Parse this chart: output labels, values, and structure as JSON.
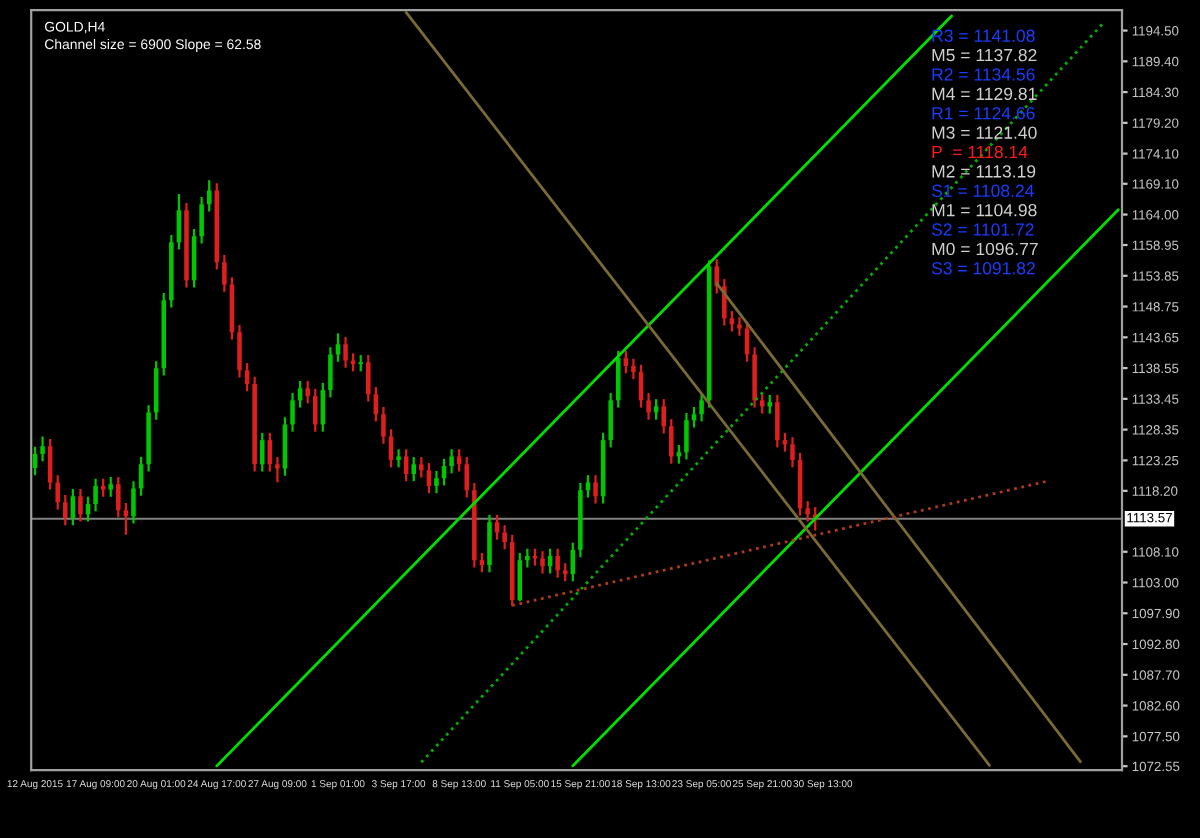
{
  "chart_data": {
    "type": "candlestick",
    "title": "GOLD,H4",
    "subtitle": "Channel size = 6900 Slope = 62.58",
    "categories": [
      "12 Aug 2015",
      null,
      null,
      null,
      null,
      null,
      null,
      null,
      "17 Aug 09:00",
      null,
      null,
      null,
      null,
      null,
      null,
      null,
      "20 Aug 01:00",
      null,
      null,
      null,
      null,
      null,
      null,
      null,
      "24 Aug 17:00",
      null,
      null,
      null,
      null,
      null,
      null,
      null,
      "27 Aug 09:00",
      null,
      null,
      null,
      null,
      null,
      null,
      null,
      "1 Sep 01:00",
      null,
      null,
      null,
      null,
      null,
      null,
      null,
      "3 Sep 17:00",
      null,
      null,
      null,
      null,
      null,
      null,
      null,
      "8 Sep 13:00",
      null,
      null,
      null,
      null,
      null,
      null,
      null,
      "11 Sep 05:00",
      null,
      null,
      null,
      null,
      null,
      null,
      null,
      "15 Sep 21:00",
      null,
      null,
      null,
      null,
      null,
      null,
      null,
      "18 Sep 13:00",
      null,
      null,
      null,
      null,
      null,
      null,
      null,
      "23 Sep 05:00",
      null,
      null,
      null,
      null,
      null,
      null,
      null,
      "25 Sep 21:00",
      null,
      null,
      null,
      null,
      null,
      null,
      null,
      "30 Sep 13:00",
      null,
      null,
      null,
      null,
      null,
      null,
      null,
      null,
      null,
      null,
      null,
      null,
      null,
      null,
      null,
      null,
      null,
      null,
      null,
      null,
      null,
      null,
      null,
      null,
      null,
      null,
      null,
      null,
      null,
      null,
      null,
      null,
      null,
      null,
      null,
      null,
      null,
      null,
      null
    ],
    "ohlc": [
      [
        1122.0,
        1125.5,
        1120.8,
        1124.3
      ],
      [
        1124.3,
        1127.2,
        1123.1,
        1125.6
      ],
      [
        1125.6,
        1126.8,
        1118.4,
        1119.6
      ],
      [
        1119.6,
        1120.8,
        1115.1,
        1116.3
      ],
      [
        1116.3,
        1117.5,
        1112.5,
        1113.7
      ],
      [
        1113.7,
        1118.5,
        1112.5,
        1117.3
      ],
      [
        1117.3,
        1118.5,
        1113.1,
        1114.3
      ],
      [
        1114.3,
        1117.2,
        1113.1,
        1116.0
      ],
      [
        1116.0,
        1120.2,
        1114.8,
        1119.0
      ],
      [
        1119.0,
        1120.2,
        1117.2,
        1118.4
      ],
      [
        1118.4,
        1120.5,
        1117.2,
        1119.3
      ],
      [
        1119.3,
        1120.5,
        1113.8,
        1115.0
      ],
      [
        1115.0,
        1116.2,
        1110.9,
        1114.0
      ],
      [
        1114.0,
        1119.8,
        1112.8,
        1118.6
      ],
      [
        1118.6,
        1123.8,
        1117.4,
        1122.6
      ],
      [
        1122.6,
        1132.4,
        1121.4,
        1131.2
      ],
      [
        1131.2,
        1139.7,
        1130.0,
        1138.5
      ],
      [
        1138.5,
        1151.0,
        1137.3,
        1149.8
      ],
      [
        1149.8,
        1160.6,
        1148.6,
        1159.4
      ],
      [
        1159.4,
        1167.4,
        1158.2,
        1164.7
      ],
      [
        1164.7,
        1165.9,
        1151.9,
        1153.1
      ],
      [
        1153.1,
        1161.6,
        1151.9,
        1160.4
      ],
      [
        1160.4,
        1166.9,
        1159.2,
        1165.7
      ],
      [
        1165.7,
        1169.7,
        1164.5,
        1168.0
      ],
      [
        1168.0,
        1169.2,
        1154.9,
        1156.1
      ],
      [
        1156.1,
        1157.3,
        1151.2,
        1152.4
      ],
      [
        1152.4,
        1153.6,
        1143.3,
        1144.5
      ],
      [
        1144.5,
        1145.7,
        1137.0,
        1138.2
      ],
      [
        1138.2,
        1139.4,
        1134.7,
        1135.9
      ],
      [
        1135.9,
        1137.1,
        1121.4,
        1122.6
      ],
      [
        1122.6,
        1127.8,
        1121.4,
        1126.6
      ],
      [
        1126.6,
        1127.8,
        1121.4,
        1122.6
      ],
      [
        1122.6,
        1123.8,
        1119.6,
        1121.9
      ],
      [
        1121.9,
        1130.4,
        1120.7,
        1129.2
      ],
      [
        1129.2,
        1134.4,
        1128.0,
        1133.2
      ],
      [
        1133.2,
        1136.4,
        1132.0,
        1135.2
      ],
      [
        1135.2,
        1136.4,
        1132.7,
        1133.9
      ],
      [
        1133.9,
        1135.1,
        1128.0,
        1129.2
      ],
      [
        1129.2,
        1136.1,
        1128.0,
        1134.9
      ],
      [
        1134.9,
        1142.0,
        1133.7,
        1140.8
      ],
      [
        1140.8,
        1144.3,
        1139.6,
        1142.5
      ],
      [
        1142.5,
        1143.7,
        1138.6,
        1139.8
      ],
      [
        1139.8,
        1141.0,
        1138.0,
        1139.2
      ],
      [
        1139.2,
        1140.7,
        1138.0,
        1139.5
      ],
      [
        1139.5,
        1140.7,
        1133.0,
        1134.2
      ],
      [
        1134.2,
        1135.4,
        1129.7,
        1130.9
      ],
      [
        1130.9,
        1132.1,
        1126.0,
        1127.2
      ],
      [
        1127.2,
        1128.4,
        1122.1,
        1123.3
      ],
      [
        1123.3,
        1125.1,
        1122.1,
        1123.9
      ],
      [
        1123.9,
        1125.1,
        1119.8,
        1121.0
      ],
      [
        1121.0,
        1123.8,
        1119.8,
        1122.6
      ],
      [
        1122.6,
        1123.8,
        1120.4,
        1121.6
      ],
      [
        1121.6,
        1122.8,
        1117.8,
        1119.0
      ],
      [
        1119.0,
        1121.5,
        1117.8,
        1120.3
      ],
      [
        1120.3,
        1123.5,
        1119.1,
        1122.3
      ],
      [
        1122.3,
        1125.1,
        1121.1,
        1123.9
      ],
      [
        1123.9,
        1125.1,
        1121.4,
        1122.6
      ],
      [
        1122.6,
        1123.8,
        1117.1,
        1118.3
      ],
      [
        1118.3,
        1119.5,
        1105.5,
        1106.7
      ],
      [
        1106.7,
        1107.9,
        1104.7,
        1105.9
      ],
      [
        1105.9,
        1114.2,
        1104.7,
        1113.0
      ],
      [
        1113.0,
        1114.2,
        1110.1,
        1111.3
      ],
      [
        1111.3,
        1112.5,
        1108.5,
        1109.7
      ],
      [
        1109.7,
        1110.9,
        1099.1,
        1100.1
      ],
      [
        1100.1,
        1107.9,
        1099.9,
        1106.7
      ],
      [
        1106.7,
        1108.6,
        1105.5,
        1107.4
      ],
      [
        1107.4,
        1108.6,
        1105.8,
        1107.0
      ],
      [
        1107.0,
        1108.2,
        1104.5,
        1105.7
      ],
      [
        1105.7,
        1108.6,
        1104.5,
        1107.4
      ],
      [
        1107.4,
        1108.6,
        1103.8,
        1105.0
      ],
      [
        1105.0,
        1106.2,
        1103.2,
        1104.4
      ],
      [
        1104.4,
        1109.6,
        1103.2,
        1108.4
      ],
      [
        1108.4,
        1119.5,
        1107.2,
        1118.3
      ],
      [
        1118.3,
        1120.8,
        1117.1,
        1119.6
      ],
      [
        1119.6,
        1120.8,
        1116.1,
        1117.3
      ],
      [
        1117.3,
        1127.8,
        1116.1,
        1126.6
      ],
      [
        1126.6,
        1134.4,
        1125.4,
        1133.2
      ],
      [
        1133.2,
        1141.4,
        1132.0,
        1140.2
      ],
      [
        1140.2,
        1141.4,
        1137.7,
        1138.9
      ],
      [
        1138.9,
        1140.1,
        1136.7,
        1137.9
      ],
      [
        1137.9,
        1139.1,
        1132.0,
        1133.2
      ],
      [
        1133.2,
        1134.4,
        1130.0,
        1131.2
      ],
      [
        1131.2,
        1133.4,
        1130.0,
        1132.2
      ],
      [
        1132.2,
        1133.4,
        1127.7,
        1128.9
      ],
      [
        1128.9,
        1130.1,
        1122.7,
        1123.9
      ],
      [
        1123.9,
        1125.8,
        1122.7,
        1124.6
      ],
      [
        1124.6,
        1131.1,
        1123.4,
        1129.9
      ],
      [
        1129.9,
        1132.1,
        1128.7,
        1130.9
      ],
      [
        1130.9,
        1134.4,
        1129.7,
        1133.2
      ],
      [
        1133.2,
        1156.4,
        1132.0,
        1155.4
      ],
      [
        1155.4,
        1156.6,
        1150.9,
        1152.1
      ],
      [
        1152.1,
        1153.3,
        1145.6,
        1146.8
      ],
      [
        1146.8,
        1148.0,
        1144.6,
        1145.8
      ],
      [
        1145.8,
        1147.0,
        1143.9,
        1145.1
      ],
      [
        1145.1,
        1146.3,
        1139.6,
        1140.8
      ],
      [
        1140.8,
        1142.0,
        1132.0,
        1133.2
      ],
      [
        1133.2,
        1134.4,
        1131.0,
        1132.2
      ],
      [
        1132.2,
        1134.1,
        1131.0,
        1132.9
      ],
      [
        1132.9,
        1134.1,
        1125.4,
        1126.6
      ],
      [
        1126.6,
        1127.8,
        1124.7,
        1125.9
      ],
      [
        1125.9,
        1127.1,
        1122.1,
        1123.3
      ],
      [
        1123.3,
        1124.5,
        1114.1,
        1115.3
      ],
      [
        1115.3,
        1116.5,
        1113.1,
        1114.3
      ],
      [
        1114.3,
        1115.5,
        1111.6,
        1113.3
      ],
      null,
      null,
      null,
      null,
      null,
      null,
      null,
      null,
      null,
      null,
      null,
      null,
      null,
      null,
      null,
      null,
      null,
      null,
      null,
      null,
      null,
      null,
      null,
      null,
      null,
      null,
      null,
      null,
      null,
      null,
      null,
      null,
      null,
      null,
      null,
      null,
      null,
      null,
      null,
      null
    ],
    "colors": [
      "#00c800",
      "#00c800",
      "#e01e1e",
      "#e01e1e",
      "#e01e1e",
      "#00c800",
      "#e01e1e",
      "#00c800",
      "#00c800",
      "#e01e1e",
      "#00c800",
      "#e01e1e",
      "#e01e1e",
      "#00c800",
      "#00c800",
      "#00c800",
      "#00c800",
      "#00c800",
      "#00c800",
      "#00c800",
      "#e01e1e",
      "#00c800",
      "#00c800",
      "#00c800",
      "#e01e1e",
      "#e01e1e",
      "#e01e1e",
      "#e01e1e",
      "#e01e1e",
      "#e01e1e",
      "#00c800",
      "#e01e1e",
      "#e01e1e",
      "#00c800",
      "#00c800",
      "#00c800",
      "#e01e1e",
      "#e01e1e",
      "#00c800",
      "#00c800",
      "#00c800",
      "#e01e1e",
      "#e01e1e",
      "#00c800",
      "#e01e1e",
      "#e01e1e",
      "#e01e1e",
      "#e01e1e",
      "#00c800",
      "#e01e1e",
      "#00c800",
      "#e01e1e",
      "#e01e1e",
      "#00c800",
      "#00c800",
      "#00c800",
      "#e01e1e",
      "#e01e1e",
      "#e01e1e",
      "#e01e1e",
      "#00c800",
      "#e01e1e",
      "#e01e1e",
      "#e01e1e",
      "#00c800",
      "#00c800",
      "#e01e1e",
      "#e01e1e",
      "#00c800",
      "#e01e1e",
      "#e01e1e",
      "#00c800",
      "#00c800",
      "#00c800",
      "#e01e1e",
      "#00c800",
      "#00c800",
      "#00c800",
      "#e01e1e",
      "#e01e1e",
      "#e01e1e",
      "#e01e1e",
      "#00c800",
      "#e01e1e",
      "#e01e1e",
      "#00c800",
      "#00c800",
      "#00c800",
      "#00c800",
      "#00c800",
      "#e01e1e",
      "#e01e1e",
      "#e01e1e",
      "#e01e1e",
      "#e01e1e",
      "#e01e1e",
      "#e01e1e",
      "#00c800",
      "#e01e1e",
      "#e01e1e",
      "#e01e1e",
      "#e01e1e",
      "#e01e1e",
      "#e01e1e",
      null,
      null,
      null,
      null,
      null,
      null,
      null,
      null,
      null,
      null,
      null,
      null,
      null,
      null,
      null,
      null,
      null,
      null,
      null,
      null,
      null,
      null,
      null,
      null,
      null,
      null,
      null,
      null,
      null,
      null,
      null,
      null,
      null,
      null,
      null,
      null,
      null,
      null,
      null,
      null
    ],
    "series": [
      {
        "type": "line",
        "color": "#00e000",
        "line_style": "solid",
        "values": [
          null,
          null,
          null,
          null,
          null,
          null,
          null,
          null,
          null,
          null,
          null,
          null,
          null,
          null,
          null,
          null,
          null,
          null,
          null,
          null,
          null,
          null,
          null,
          null,
          1072.6,
          null,
          null,
          null,
          null,
          null,
          null,
          null,
          null,
          null,
          null,
          null,
          null,
          null,
          null,
          null,
          null,
          null,
          null,
          null,
          null,
          null,
          null,
          null,
          null,
          null,
          null,
          null,
          null,
          null,
          null,
          null,
          null,
          null,
          null,
          null,
          null,
          null,
          null,
          null,
          null,
          null,
          null,
          null,
          null,
          null,
          null,
          null,
          null,
          null,
          null,
          null,
          null,
          null,
          null,
          null,
          null,
          null,
          null,
          null,
          null,
          null,
          null,
          null,
          null,
          null,
          null,
          null,
          null,
          null,
          null,
          null,
          null,
          null,
          null,
          null,
          null,
          null,
          null,
          null,
          null,
          null,
          null,
          null,
          null,
          null,
          null,
          null,
          null,
          null,
          null,
          null,
          null,
          null,
          null,
          null,
          null,
          1196.9,
          null,
          null,
          null,
          null,
          null,
          null,
          null,
          null,
          null,
          null,
          null,
          null,
          null,
          null,
          null,
          null,
          null,
          null,
          null,
          null,
          null,
          null
        ]
      },
      {
        "type": "line",
        "color": "#00e000",
        "line_style": "solid",
        "values": [
          null,
          null,
          null,
          null,
          null,
          null,
          null,
          null,
          null,
          null,
          null,
          null,
          null,
          null,
          null,
          null,
          null,
          null,
          null,
          null,
          null,
          null,
          null,
          null,
          null,
          null,
          null,
          null,
          null,
          null,
          null,
          null,
          null,
          null,
          null,
          null,
          null,
          null,
          null,
          null,
          null,
          null,
          null,
          null,
          null,
          null,
          null,
          null,
          null,
          null,
          null,
          null,
          null,
          null,
          null,
          null,
          null,
          null,
          null,
          null,
          null,
          null,
          null,
          null,
          null,
          null,
          null,
          null,
          null,
          null,
          null,
          1072.6,
          null,
          null,
          null,
          null,
          null,
          null,
          null,
          null,
          null,
          null,
          null,
          null,
          null,
          null,
          null,
          null,
          null,
          null,
          null,
          null,
          null,
          null,
          null,
          null,
          null,
          null,
          null,
          null,
          null,
          null,
          null,
          null,
          null,
          null,
          null,
          null,
          null,
          null,
          null,
          null,
          null,
          null,
          null,
          null,
          null,
          null,
          null,
          null,
          null,
          null,
          null,
          null,
          null,
          null,
          null,
          null,
          null,
          null,
          null,
          null,
          null,
          null,
          null,
          null,
          null,
          null,
          null,
          null,
          null,
          null,
          null,
          1164.8
        ]
      },
      {
        "type": "line",
        "color": "#00b000",
        "line_style": "dotted",
        "values": [
          null,
          null,
          null,
          null,
          null,
          null,
          null,
          null,
          null,
          null,
          null,
          null,
          null,
          null,
          null,
          null,
          null,
          null,
          null,
          null,
          null,
          null,
          null,
          null,
          null,
          null,
          null,
          null,
          null,
          null,
          null,
          null,
          null,
          null,
          null,
          null,
          null,
          null,
          null,
          null,
          null,
          null,
          null,
          null,
          null,
          null,
          null,
          null,
          null,
          null,
          null,
          1073.2,
          null,
          null,
          null,
          null,
          null,
          null,
          null,
          null,
          null,
          null,
          null,
          null,
          null,
          null,
          null,
          null,
          null,
          null,
          null,
          null,
          null,
          null,
          null,
          null,
          null,
          null,
          null,
          null,
          null,
          null,
          null,
          null,
          null,
          null,
          null,
          null,
          null,
          null,
          null,
          null,
          null,
          null,
          null,
          null,
          null,
          null,
          null,
          null,
          null,
          null,
          null,
          null,
          null,
          null,
          null,
          null,
          null,
          null,
          null,
          null,
          null,
          null,
          null,
          null,
          null,
          null,
          null,
          null,
          null,
          null,
          null,
          null,
          null,
          null,
          null,
          null,
          null,
          null,
          null,
          null,
          null,
          null,
          null,
          null,
          null,
          null,
          null,
          null,
          null,
          1195.7,
          null,
          null
        ]
      },
      {
        "type": "line",
        "color": "#7a6a34",
        "line_style": "solid",
        "values": [
          null,
          null,
          null,
          null,
          null,
          null,
          null,
          null,
          null,
          null,
          null,
          null,
          null,
          null,
          null,
          null,
          null,
          null,
          null,
          null,
          null,
          null,
          null,
          null,
          null,
          null,
          null,
          null,
          null,
          null,
          null,
          null,
          null,
          null,
          null,
          null,
          null,
          null,
          null,
          null,
          null,
          null,
          null,
          null,
          null,
          null,
          null,
          null,
          null,
          1197.5,
          null,
          null,
          null,
          null,
          null,
          null,
          null,
          null,
          null,
          null,
          null,
          null,
          null,
          null,
          null,
          null,
          null,
          null,
          null,
          null,
          null,
          null,
          null,
          null,
          null,
          null,
          null,
          null,
          null,
          null,
          null,
          null,
          null,
          null,
          null,
          null,
          null,
          null,
          null,
          null,
          null,
          null,
          null,
          null,
          null,
          null,
          null,
          null,
          null,
          null,
          null,
          null,
          null,
          null,
          null,
          null,
          null,
          null,
          null,
          null,
          null,
          null,
          null,
          null,
          null,
          null,
          null,
          null,
          null,
          null,
          null,
          null,
          null,
          null,
          null,
          null,
          1072.7,
          null,
          null,
          null,
          null,
          null,
          null,
          null,
          null,
          null,
          null,
          null,
          null,
          null,
          null,
          null,
          null,
          null
        ]
      },
      {
        "type": "line",
        "color": "#7a6a34",
        "line_style": "solid",
        "values": [
          null,
          null,
          null,
          null,
          null,
          null,
          null,
          null,
          null,
          null,
          null,
          null,
          null,
          null,
          null,
          null,
          null,
          null,
          null,
          null,
          null,
          null,
          null,
          null,
          null,
          null,
          null,
          null,
          null,
          null,
          null,
          null,
          null,
          null,
          null,
          null,
          null,
          null,
          null,
          null,
          null,
          null,
          null,
          null,
          null,
          null,
          null,
          null,
          null,
          null,
          null,
          null,
          null,
          null,
          null,
          null,
          null,
          null,
          null,
          null,
          null,
          null,
          null,
          null,
          null,
          null,
          null,
          null,
          null,
          null,
          null,
          null,
          null,
          null,
          null,
          null,
          null,
          null,
          null,
          null,
          null,
          null,
          null,
          null,
          null,
          null,
          null,
          null,
          null,
          null,
          1152.6,
          null,
          null,
          null,
          null,
          null,
          null,
          null,
          null,
          null,
          null,
          null,
          null,
          null,
          null,
          null,
          null,
          null,
          null,
          null,
          null,
          null,
          null,
          null,
          null,
          null,
          null,
          null,
          null,
          null,
          null,
          null,
          null,
          null,
          null,
          null,
          null,
          null,
          null,
          null,
          null,
          null,
          null,
          null,
          null,
          null,
          null,
          null,
          1073.3,
          null,
          null,
          null,
          null,
          null
        ]
      },
      {
        "type": "line",
        "color": "#b03a1a",
        "line_style": "dotted",
        "values": [
          null,
          null,
          null,
          null,
          null,
          null,
          null,
          null,
          null,
          null,
          null,
          null,
          null,
          null,
          null,
          null,
          null,
          null,
          null,
          null,
          null,
          null,
          null,
          null,
          null,
          null,
          null,
          null,
          null,
          null,
          null,
          null,
          null,
          null,
          null,
          null,
          null,
          null,
          null,
          null,
          null,
          null,
          null,
          null,
          null,
          null,
          null,
          null,
          null,
          null,
          null,
          null,
          null,
          null,
          null,
          null,
          null,
          null,
          null,
          null,
          null,
          null,
          null,
          1099.2,
          null,
          null,
          null,
          null,
          null,
          null,
          null,
          null,
          null,
          null,
          null,
          null,
          null,
          null,
          null,
          null,
          null,
          null,
          null,
          null,
          null,
          null,
          null,
          null,
          null,
          null,
          null,
          null,
          null,
          null,
          null,
          null,
          null,
          null,
          null,
          null,
          null,
          null,
          null,
          null,
          null,
          null,
          null,
          null,
          null,
          null,
          null,
          null,
          null,
          null,
          null,
          null,
          null,
          null,
          null,
          null,
          null,
          null,
          null,
          null,
          null,
          null,
          null,
          null,
          null,
          null,
          null,
          null,
          null,
          null,
          1119.9,
          null,
          null,
          null,
          null,
          null,
          null,
          null,
          null,
          null
        ]
      }
    ],
    "ylim": [
      1071.9,
      1197.9
    ],
    "yticks": [
      {
        "value": 1072.55,
        "label": "1072.55"
      },
      {
        "value": 1077.5,
        "label": "1077.50"
      },
      {
        "value": 1082.6,
        "label": "1082.60"
      },
      {
        "value": 1087.7,
        "label": "1087.70"
      },
      {
        "value": 1092.8,
        "label": "1092.80"
      },
      {
        "value": 1097.9,
        "label": "1097.90"
      },
      {
        "value": 1103.0,
        "label": "1103.00"
      },
      {
        "value": 1108.1,
        "label": "1108.10"
      },
      {
        "value": 1118.2,
        "label": "1118.20"
      },
      {
        "value": 1123.25,
        "label": "1123.25"
      },
      {
        "value": 1128.35,
        "label": "1128.35"
      },
      {
        "value": 1133.45,
        "label": "1133.45"
      },
      {
        "value": 1138.55,
        "label": "1138.55"
      },
      {
        "value": 1143.65,
        "label": "1143.65"
      },
      {
        "value": 1148.75,
        "label": "1148.75"
      },
      {
        "value": 1153.85,
        "label": "1153.85"
      },
      {
        "value": 1158.95,
        "label": "1158.95"
      },
      {
        "value": 1164.0,
        "label": "1164.00"
      },
      {
        "value": 1169.1,
        "label": "1169.10"
      },
      {
        "value": 1174.1,
        "label": "1174.10"
      },
      {
        "value": 1179.2,
        "label": "1179.20"
      },
      {
        "value": 1184.3,
        "label": "1184.30"
      },
      {
        "value": 1189.4,
        "label": "1189.40"
      },
      {
        "value": 1194.5,
        "label": "1194.50"
      }
    ],
    "ref_lines": [
      {
        "axis": "y",
        "value": 1113.57,
        "label": "1113.57",
        "color": "#808080"
      }
    ],
    "annotations": [
      "R3 = 1141.08",
      "M5 = 1137.82",
      "R2 = 1134.56",
      "M4 = 1129.81",
      "R1 = 1124.66",
      "M3 = 1121.40",
      "P  = 1118.14",
      "M2 = 1113.19",
      "S1 = 1108.24",
      "M1 = 1104.98",
      "S2 = 1101.72",
      "M0 = 1096.77",
      "S3 = 1091.82"
    ]
  }
}
